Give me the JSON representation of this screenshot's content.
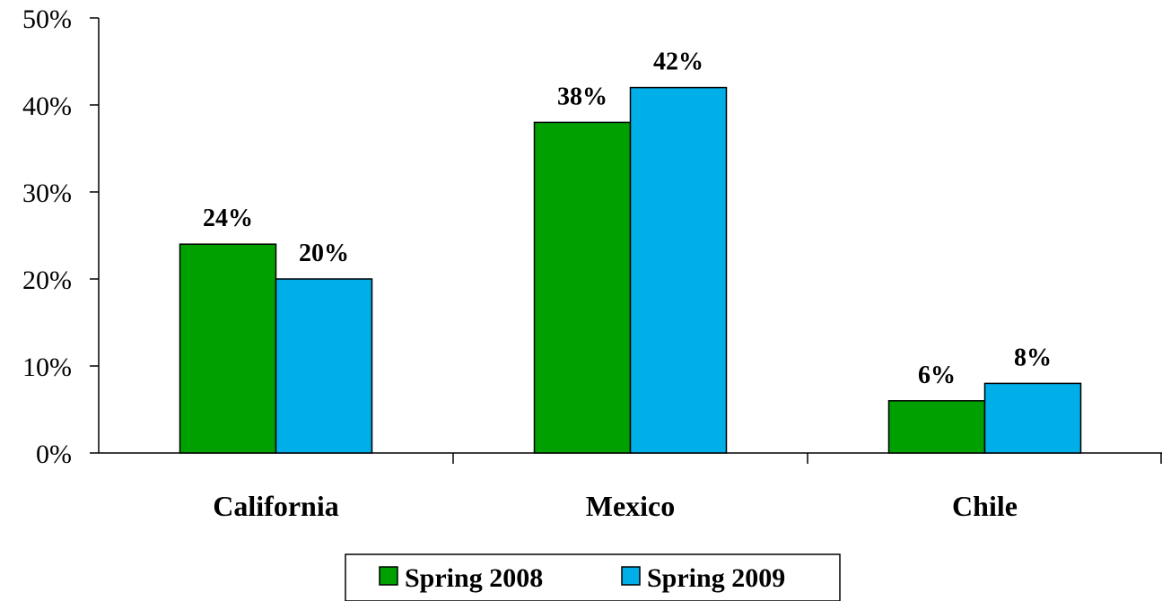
{
  "chart_data": {
    "type": "bar",
    "categories": [
      "California",
      "Mexico",
      "Chile"
    ],
    "series": [
      {
        "name": "Spring 2008",
        "values": [
          24,
          38,
          6
        ],
        "color": "#00a000"
      },
      {
        "name": "Spring 2009",
        "values": [
          20,
          42,
          8
        ],
        "color": "#00aee8"
      }
    ],
    "data_labels": [
      [
        "24%",
        "38%",
        "6%"
      ],
      [
        "20%",
        "42%",
        "8%"
      ]
    ],
    "y_ticks": [
      "0%",
      "10%",
      "20%",
      "30%",
      "40%",
      "50%"
    ],
    "ylim": [
      0,
      50
    ],
    "grid": false,
    "legend_position": "bottom",
    "title": "",
    "xlabel": "",
    "ylabel": ""
  }
}
